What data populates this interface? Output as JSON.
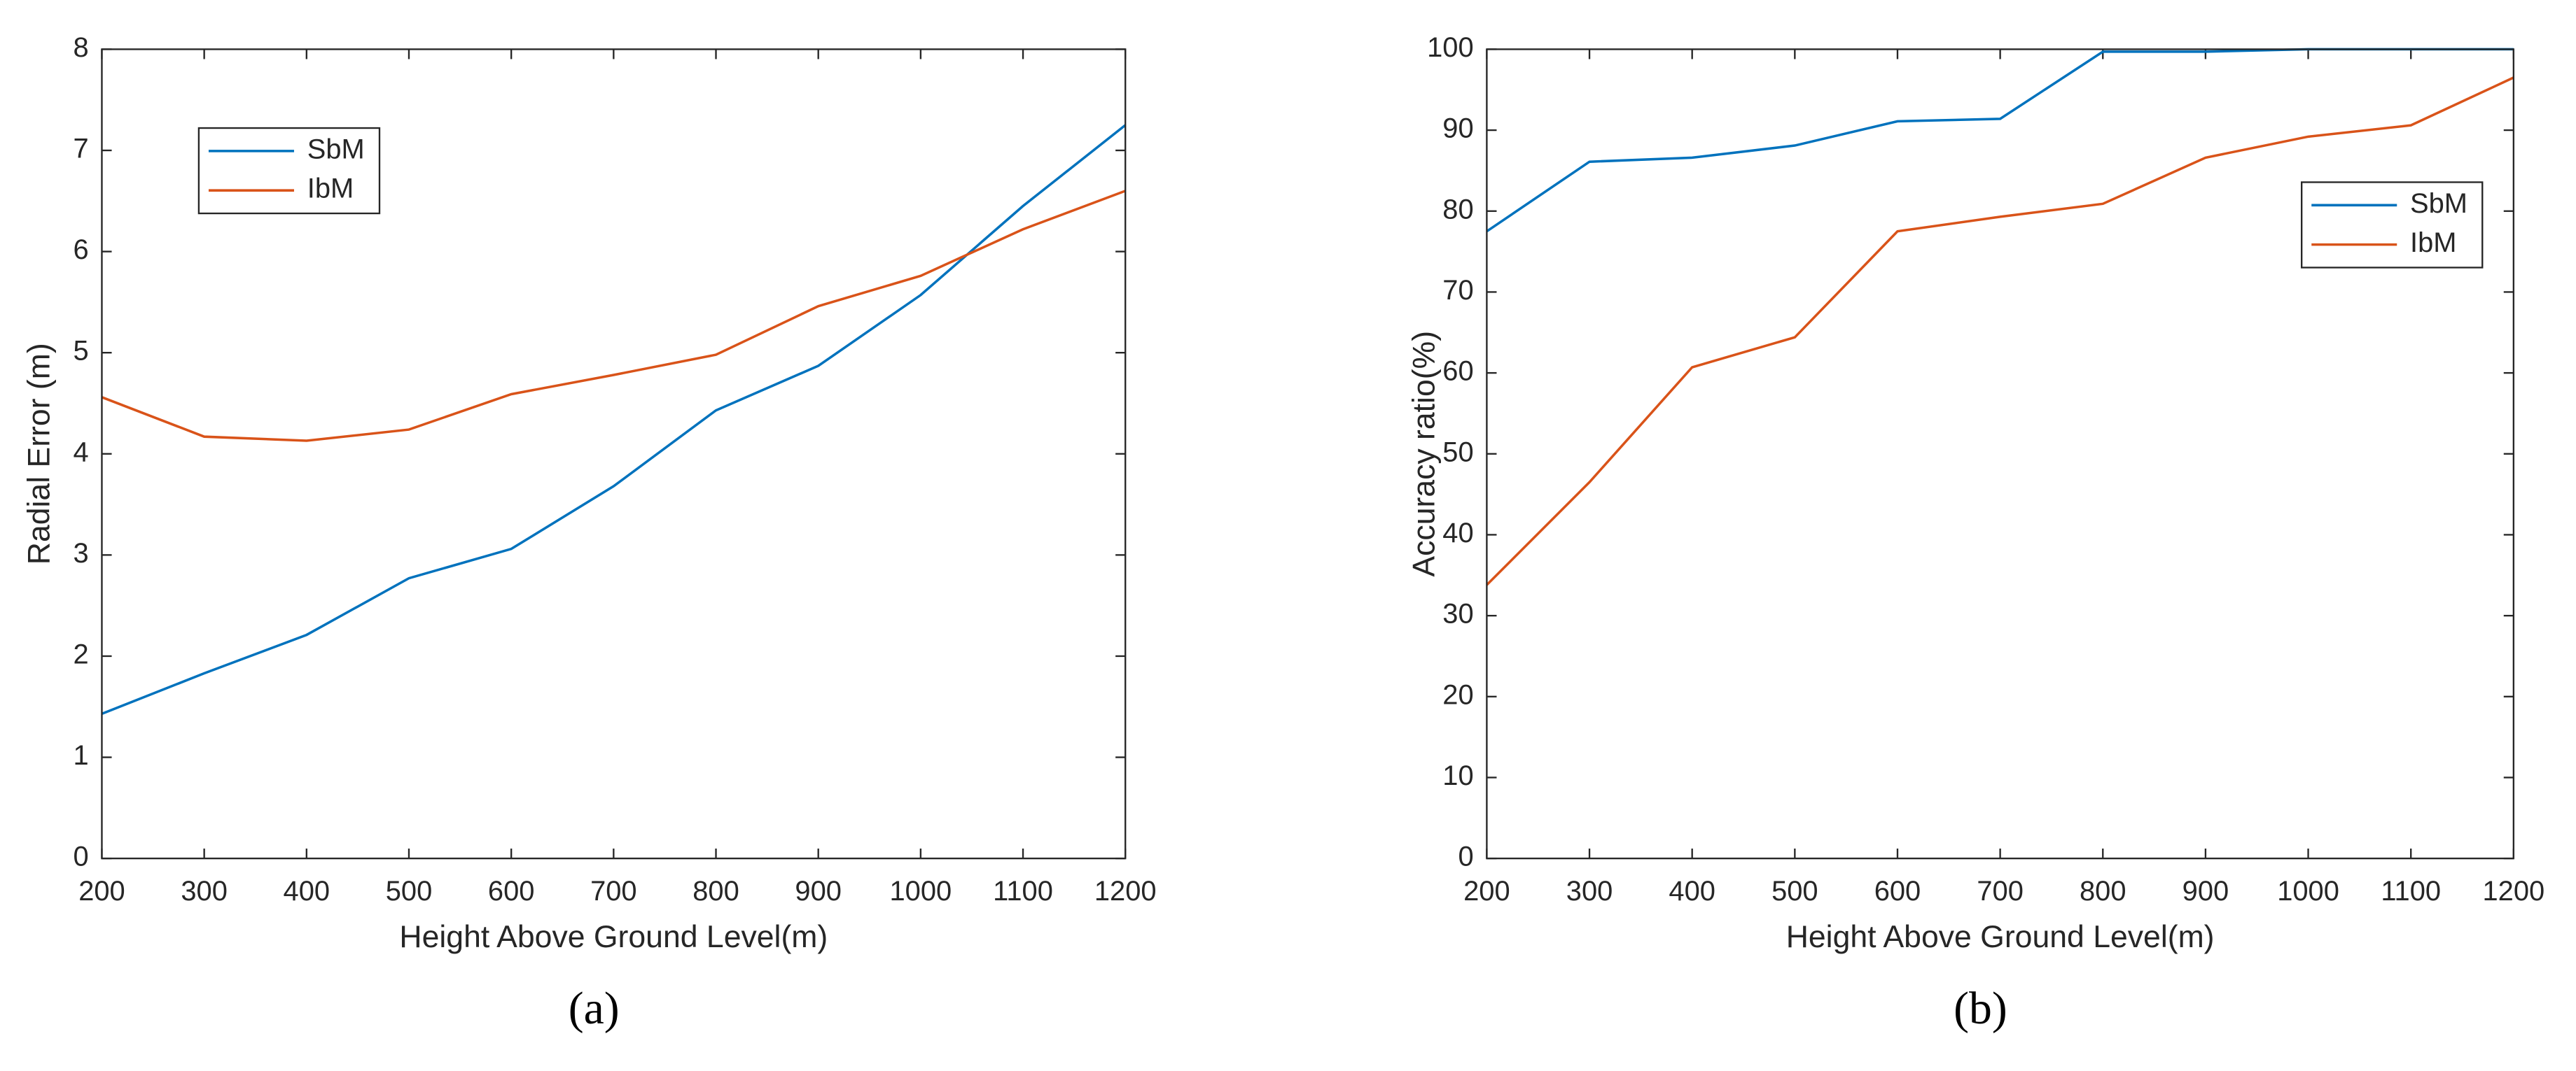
{
  "chart_data": [
    {
      "type": "line",
      "caption": "(a)",
      "x_label": "Height Above Ground Level(m)",
      "y_label": "Radial Error (m)",
      "x": [
        200,
        300,
        400,
        500,
        600,
        700,
        800,
        900,
        1000,
        1100,
        1200
      ],
      "xlim": [
        200,
        1200
      ],
      "xticks": [
        200,
        300,
        400,
        500,
        600,
        700,
        800,
        900,
        1000,
        1100,
        1200
      ],
      "ylim": [
        0,
        8
      ],
      "yticks": [
        0,
        1,
        2,
        3,
        4,
        5,
        6,
        7,
        8
      ],
      "legend": "upper left",
      "series": [
        {
          "name": "SbM",
          "color": "#0072bd",
          "values": [
            1.43,
            1.83,
            2.21,
            2.77,
            3.06,
            3.68,
            4.43,
            4.87,
            5.57,
            6.45,
            7.25
          ]
        },
        {
          "name": "IbM",
          "color": "#d95319",
          "values": [
            4.56,
            4.17,
            4.13,
            4.24,
            4.59,
            4.78,
            4.98,
            5.46,
            5.76,
            6.22,
            6.6
          ]
        }
      ]
    },
    {
      "type": "line",
      "caption": "(b)",
      "x_label": "Height Above Ground Level(m)",
      "y_label": "Accuracy ratio(%)",
      "x": [
        200,
        300,
        400,
        500,
        600,
        700,
        800,
        900,
        1000,
        1100,
        1200
      ],
      "xlim": [
        200,
        1200
      ],
      "xticks": [
        200,
        300,
        400,
        500,
        600,
        700,
        800,
        900,
        1000,
        1100,
        1200
      ],
      "ylim": [
        0,
        100
      ],
      "yticks": [
        0,
        10,
        20,
        30,
        40,
        50,
        60,
        70,
        80,
        90,
        100
      ],
      "legend": "upper right",
      "series": [
        {
          "name": "SbM",
          "color": "#0072bd",
          "values": [
            77.5,
            86.1,
            86.6,
            88.1,
            91.1,
            91.4,
            99.7,
            99.7,
            100,
            100,
            100
          ]
        },
        {
          "name": "IbM",
          "color": "#d95319",
          "values": [
            33.8,
            46.5,
            60.7,
            64.4,
            77.5,
            79.3,
            80.9,
            86.6,
            89.2,
            90.6,
            96.5
          ]
        }
      ]
    }
  ]
}
